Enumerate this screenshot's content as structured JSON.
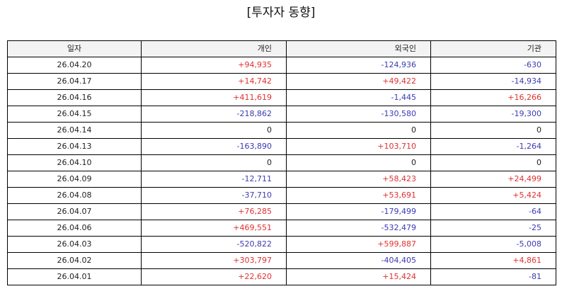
{
  "title": "[투자자 동향]",
  "columns": {
    "date": "일자",
    "individual": "개인",
    "foreign": "외국인",
    "institution": "기관"
  },
  "rows": [
    {
      "date": "26.04.20",
      "individual": "+94,935",
      "foreign": "-124,936",
      "institution": "-630"
    },
    {
      "date": "26.04.17",
      "individual": "+14,742",
      "foreign": "+49,422",
      "institution": "-14,934"
    },
    {
      "date": "26.04.16",
      "individual": "+411,619",
      "foreign": "-1,445",
      "institution": "+16,266"
    },
    {
      "date": "26.04.15",
      "individual": "-218,862",
      "foreign": "-130,580",
      "institution": "-19,300"
    },
    {
      "date": "26.04.14",
      "individual": "0",
      "foreign": "0",
      "institution": "0"
    },
    {
      "date": "26.04.13",
      "individual": "-163,890",
      "foreign": "+103,710",
      "institution": "-1,264"
    },
    {
      "date": "26.04.10",
      "individual": "0",
      "foreign": "0",
      "institution": "0"
    },
    {
      "date": "26.04.09",
      "individual": "-12,711",
      "foreign": "+58,423",
      "institution": "+24,499"
    },
    {
      "date": "26.04.08",
      "individual": "-37,710",
      "foreign": "+53,691",
      "institution": "+5,424"
    },
    {
      "date": "26.04.07",
      "individual": "+76,285",
      "foreign": "-179,499",
      "institution": "-64"
    },
    {
      "date": "26.04.06",
      "individual": "+469,551",
      "foreign": "-532,479",
      "institution": "-25"
    },
    {
      "date": "26.04.03",
      "individual": "-520,822",
      "foreign": "+599,887",
      "institution": "-5,008"
    },
    {
      "date": "26.04.02",
      "individual": "+303,797",
      "foreign": "-404,405",
      "institution": "+4,861"
    },
    {
      "date": "26.04.01",
      "individual": "+22,620",
      "foreign": "+15,424",
      "institution": "-81"
    }
  ],
  "colors": {
    "positive": "#e03030",
    "negative": "#3a3ab5",
    "neutral": "#222222",
    "header_bg": "#f3f3f3",
    "border": "#000000"
  }
}
